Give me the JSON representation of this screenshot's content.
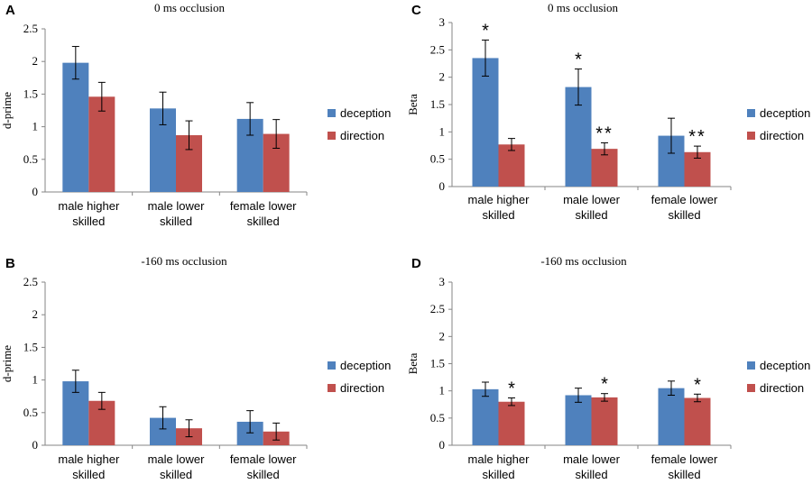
{
  "colors": {
    "deception": "#4f81bd",
    "direction": "#c0504d",
    "axis": "#868686"
  },
  "chart_data": [
    {
      "panel": "A",
      "type": "bar",
      "title": "0 ms  occlusion",
      "ylabel": "d-prime",
      "ylim": [
        0,
        2.5
      ],
      "yticks": [
        "0",
        "0.5",
        "1",
        "1.5",
        "2",
        "2.5"
      ],
      "ytick_values": [
        0,
        0.5,
        1,
        1.5,
        2,
        2.5
      ],
      "categories": [
        [
          "male higher",
          "skilled"
        ],
        [
          "male lower",
          "skilled"
        ],
        [
          "female lower",
          "skilled"
        ]
      ],
      "series": [
        {
          "name": "deception",
          "values": [
            1.98,
            1.28,
            1.12
          ],
          "errors": [
            0.25,
            0.25,
            0.25
          ]
        },
        {
          "name": "direction",
          "values": [
            1.46,
            0.87,
            0.89
          ],
          "errors": [
            0.22,
            0.22,
            0.22
          ]
        }
      ],
      "annotations": [
        [
          "",
          ""
        ],
        [
          "",
          ""
        ],
        [
          "",
          ""
        ]
      ]
    },
    {
      "panel": "C",
      "type": "bar",
      "title": "0 ms  occlusion",
      "ylabel": "Beta",
      "ylim": [
        0,
        3
      ],
      "yticks": [
        "0",
        "0.5",
        "1",
        "1.5",
        "2",
        "2.5",
        "3"
      ],
      "ytick_values": [
        0,
        0.5,
        1,
        1.5,
        2,
        2.5,
        3
      ],
      "categories": [
        [
          "male higher",
          "skilled"
        ],
        [
          "male lower",
          "skilled"
        ],
        [
          "female lower",
          "skilled"
        ]
      ],
      "series": [
        {
          "name": "deception",
          "values": [
            2.35,
            1.82,
            0.93
          ],
          "errors": [
            0.33,
            0.33,
            0.32
          ]
        },
        {
          "name": "direction",
          "values": [
            0.77,
            0.69,
            0.63
          ],
          "errors": [
            0.11,
            0.11,
            0.11
          ]
        }
      ],
      "annotations": [
        [
          "*",
          ""
        ],
        [
          "*",
          "**"
        ],
        [
          "",
          "**"
        ]
      ]
    },
    {
      "panel": "B",
      "type": "bar",
      "title": "-160 ms  occlusion",
      "ylabel": "d-prime",
      "ylim": [
        0,
        2.5
      ],
      "yticks": [
        "0",
        "0.5",
        "1",
        "1.5",
        "2",
        "2.5"
      ],
      "ytick_values": [
        0,
        0.5,
        1,
        1.5,
        2,
        2.5
      ],
      "categories": [
        [
          "male higher",
          "skilled"
        ],
        [
          "male lower",
          "skilled"
        ],
        [
          "female lower",
          "skilled"
        ]
      ],
      "series": [
        {
          "name": "deception",
          "values": [
            0.98,
            0.42,
            0.36
          ],
          "errors": [
            0.17,
            0.17,
            0.17
          ]
        },
        {
          "name": "direction",
          "values": [
            0.68,
            0.26,
            0.21
          ],
          "errors": [
            0.13,
            0.13,
            0.13
          ]
        }
      ],
      "annotations": [
        [
          "",
          ""
        ],
        [
          "",
          ""
        ],
        [
          "",
          ""
        ]
      ]
    },
    {
      "panel": "D",
      "type": "bar",
      "title": "-160 ms  occlusion",
      "ylabel": "Beta",
      "ylim": [
        0,
        3
      ],
      "yticks": [
        "0",
        "0.5",
        "1",
        "1.5",
        "2",
        "2.5",
        "3"
      ],
      "ytick_values": [
        0,
        0.5,
        1,
        1.5,
        2,
        2.5,
        3
      ],
      "categories": [
        [
          "male higher",
          "skilled"
        ],
        [
          "male lower",
          "skilled"
        ],
        [
          "female lower",
          "skilled"
        ]
      ],
      "series": [
        {
          "name": "deception",
          "values": [
            1.03,
            0.92,
            1.05
          ],
          "errors": [
            0.13,
            0.13,
            0.13
          ]
        },
        {
          "name": "direction",
          "values": [
            0.8,
            0.88,
            0.87
          ],
          "errors": [
            0.07,
            0.07,
            0.07
          ]
        }
      ],
      "annotations": [
        [
          "",
          "*"
        ],
        [
          "",
          "*"
        ],
        [
          "",
          "*"
        ]
      ]
    }
  ]
}
